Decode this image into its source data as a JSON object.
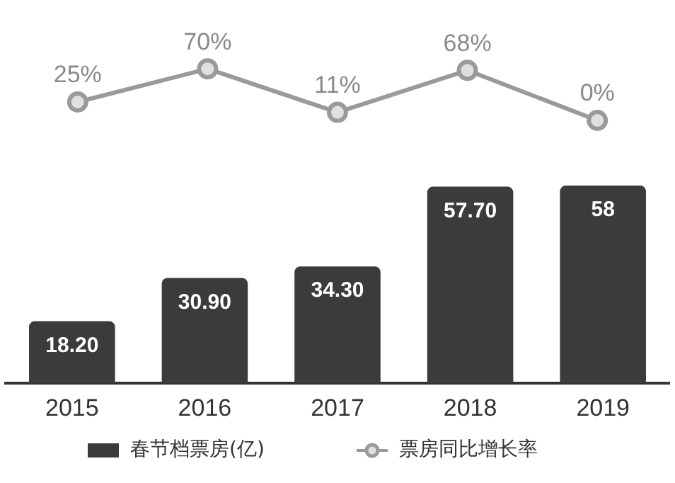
{
  "chart_data": [
    {
      "type": "line",
      "categories": [
        "2015",
        "2016",
        "2017",
        "2018",
        "2019"
      ],
      "tick_labels": false,
      "legend": "bottom",
      "marker": "circle",
      "series": [
        {
          "name": "票房同比增长率",
          "color": "#9a9a9a",
          "values": [
            25,
            70,
            11,
            68,
            0
          ],
          "value_labels": [
            "25%",
            "70%",
            "11%",
            "68%",
            "0%"
          ]
        }
      ]
    },
    {
      "type": "bar",
      "categories": [
        "2015",
        "2016",
        "2017",
        "2018",
        "2019"
      ],
      "tick_labels": "x",
      "legend": "bottom",
      "series": [
        {
          "name": "春节档票房(亿)",
          "color": "#3b3b3b",
          "values": [
            18.2,
            30.9,
            34.3,
            57.7,
            58
          ],
          "value_labels": [
            "18.20",
            "30.90",
            "34.30",
            "57.70",
            "58"
          ]
        }
      ]
    }
  ]
}
